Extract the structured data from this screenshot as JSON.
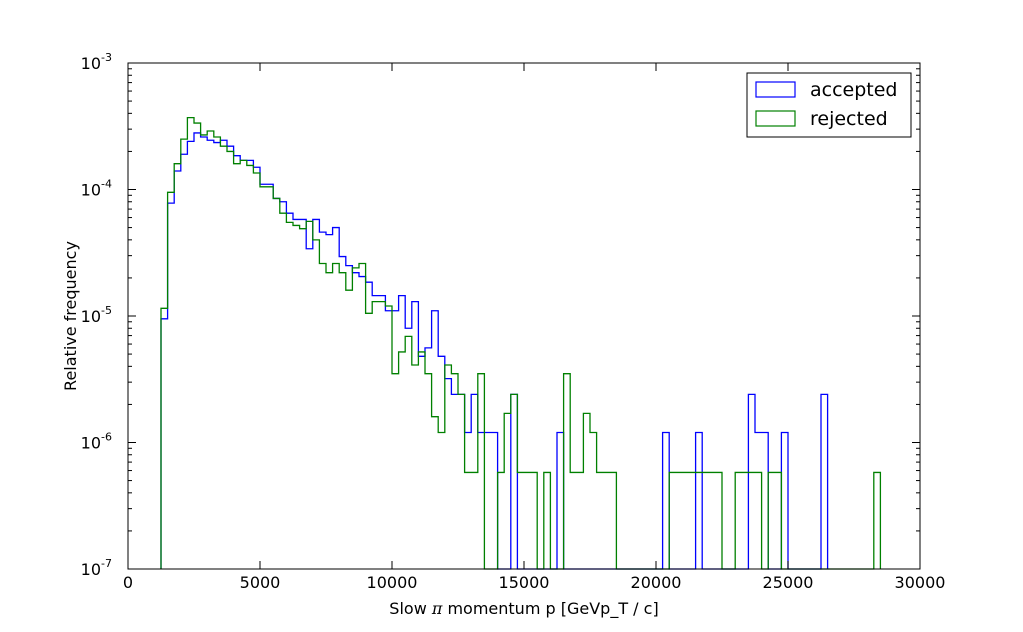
{
  "chart_data": {
    "type": "histogram",
    "xlabel_parts": [
      "Slow ",
      "π",
      " momentum p [GeVp_T / c]"
    ],
    "ylabel": "Relative frequency",
    "xlim": [
      0,
      30000
    ],
    "ylim": [
      1e-07,
      0.001
    ],
    "yscale": "log",
    "grid": false,
    "legend_position": "top-right",
    "bin_width": 250,
    "x_ticks": [
      {
        "value": 0,
        "label": "0"
      },
      {
        "value": 5000,
        "label": "5000"
      },
      {
        "value": 10000,
        "label": "10000"
      },
      {
        "value": 15000,
        "label": "15000"
      },
      {
        "value": 20000,
        "label": "20000"
      },
      {
        "value": 25000,
        "label": "25000"
      },
      {
        "value": 30000,
        "label": "30000"
      }
    ],
    "y_ticks": [
      {
        "value": 1e-07,
        "base": "10",
        "exp": "-7"
      },
      {
        "value": 1e-06,
        "base": "10",
        "exp": "-6"
      },
      {
        "value": 1e-05,
        "base": "10",
        "exp": "-5"
      },
      {
        "value": 0.0001,
        "base": "10",
        "exp": "-4"
      },
      {
        "value": 0.001,
        "base": "10",
        "exp": "-3"
      }
    ],
    "series": [
      {
        "name": "accepted",
        "color": "#0000ff",
        "bin_start": 1250,
        "values": [
          9.5e-06,
          7.8e-05,
          0.00014,
          0.00019,
          0.00024,
          0.00028,
          0.00026,
          0.000245,
          0.000235,
          0.000245,
          0.00022,
          0.000185,
          0.00017,
          0.00017,
          0.00015,
          0.00011,
          0.00011,
          8.5e-05,
          8e-05,
          6.5e-05,
          5.8e-05,
          5.8e-05,
          3.4e-05,
          5.8e-05,
          4.6e-05,
          4.4e-05,
          5e-05,
          2.95e-05,
          2.5e-05,
          2.2e-05,
          2.05e-05,
          1.85e-05,
          1.45e-05,
          1.45e-05,
          1.1e-05,
          1.1e-05,
          1.45e-05,
          8e-06,
          1.3e-05,
          4.8e-06,
          5.6e-06,
          1.1e-05,
          4.8e-06,
          3.2e-06,
          2.4e-06,
          2.4e-06,
          1.2e-06,
          2.4e-06,
          1.2e-06,
          1.2e-06,
          1.2e-06,
          0,
          0,
          2.4e-06,
          0,
          0,
          0,
          0,
          0,
          0,
          1.2e-06,
          0,
          0,
          0,
          0,
          0,
          0,
          0,
          0,
          0,
          0,
          0,
          0,
          0,
          0,
          0,
          1.2e-06,
          0,
          0,
          0,
          0,
          1.2e-06,
          0,
          0,
          0,
          0,
          0,
          0,
          0,
          2.4e-06,
          1.2e-06,
          1.2e-06,
          0,
          0,
          1.2e-06,
          0,
          0,
          0,
          0,
          0,
          2.4e-06
        ]
      },
      {
        "name": "rejected",
        "color": "#008000",
        "bin_start": 1250,
        "values": [
          1.15e-05,
          9.5e-05,
          0.00016,
          0.00025,
          0.00037,
          0.000335,
          0.00027,
          0.00029,
          0.00026,
          0.00022,
          0.0002,
          0.00016,
          0.00017,
          0.000155,
          0.000135,
          0.000105,
          0.000105,
          8.5e-05,
          6.5e-05,
          5.5e-05,
          5.2e-05,
          4.9e-05,
          5.6e-05,
          4e-05,
          2.6e-05,
          2.2e-05,
          2.6e-05,
          2.2e-05,
          1.6e-05,
          2.4e-05,
          2.6e-05,
          1.05e-05,
          1.3e-05,
          1.3e-05,
          1.2e-05,
          3.5e-06,
          5.2e-06,
          6.9e-06,
          4.1e-06,
          5.2e-06,
          3.5e-06,
          1.6e-06,
          1.2e-06,
          4.1e-06,
          3.5e-06,
          2.4e-06,
          5.8e-07,
          5.8e-07,
          3.5e-06,
          0,
          0,
          5.8e-07,
          1.7e-06,
          2.4e-06,
          5.8e-07,
          5.8e-07,
          5.8e-07,
          0,
          5.8e-07,
          0,
          0,
          3.5e-06,
          5.8e-07,
          5.8e-07,
          1.7e-06,
          1.2e-06,
          5.8e-07,
          5.8e-07,
          5.8e-07,
          0,
          0,
          0,
          0,
          0,
          0,
          0,
          0,
          5.8e-07,
          5.8e-07,
          5.8e-07,
          5.8e-07,
          5.8e-07,
          5.8e-07,
          5.8e-07,
          5.8e-07,
          0,
          0,
          5.8e-07,
          5.8e-07,
          5.8e-07,
          5.8e-07,
          0,
          5.8e-07,
          5.8e-07,
          0,
          0,
          0,
          0,
          0,
          0,
          0,
          0,
          0,
          0,
          0,
          0,
          0,
          0,
          5.8e-07
        ]
      }
    ]
  }
}
